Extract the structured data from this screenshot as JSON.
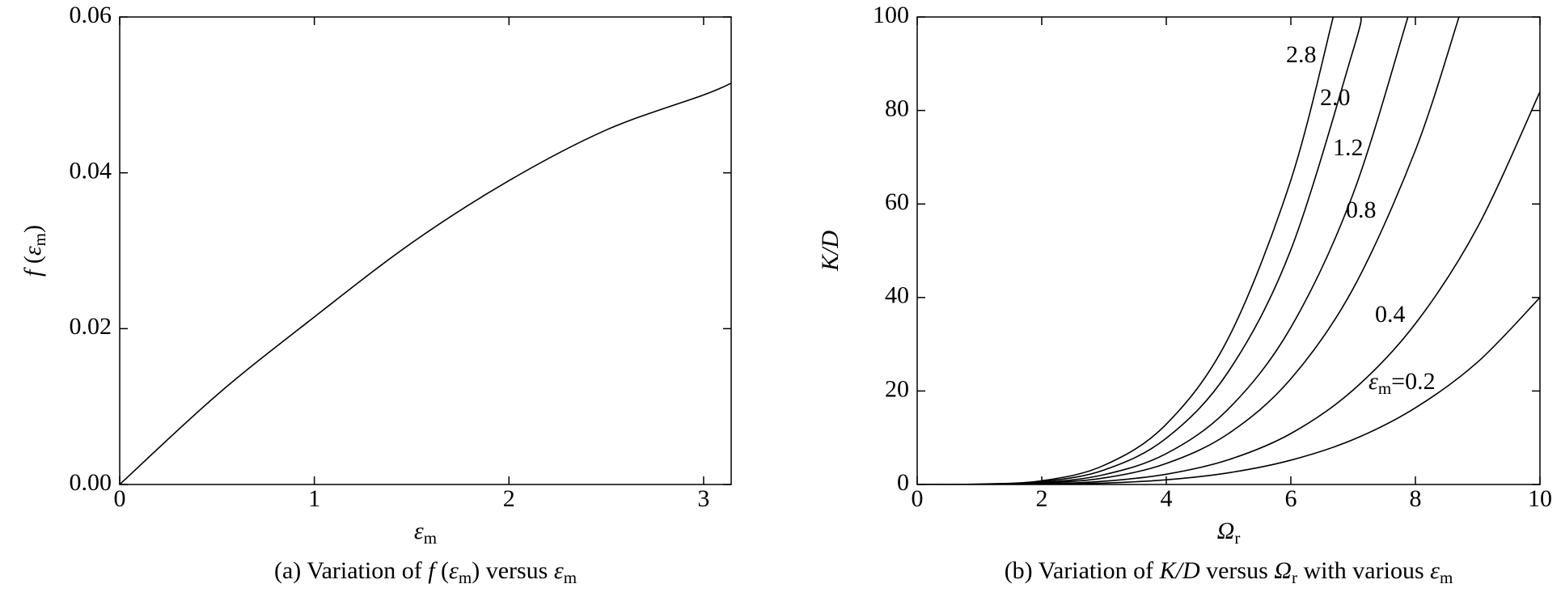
{
  "chart_data": [
    {
      "type": "line",
      "title": [
        {
          "text": "(a) Variation of "
        },
        {
          "text": "f",
          "italic": true
        },
        {
          "text": " ("
        },
        {
          "text": "ε",
          "italic": true
        },
        {
          "text": "m",
          "sub": true
        },
        {
          "text": ") versus "
        },
        {
          "text": "ε",
          "italic": true
        },
        {
          "text": "m",
          "sub": true
        }
      ],
      "xlabel": [
        {
          "text": "ε",
          "italic": true
        },
        {
          "text": "m",
          "sub": true
        }
      ],
      "ylabel": [
        {
          "text": "f",
          "italic": true
        },
        {
          "text": " ("
        },
        {
          "text": "ε",
          "italic": true
        },
        {
          "text": "m",
          "sub": true
        },
        {
          "text": ")"
        }
      ],
      "xlim": [
        0,
        3.14159
      ],
      "xticks": [
        0,
        1,
        2,
        3
      ],
      "ylim": [
        0,
        0.06
      ],
      "yticks": [
        {
          "value": 0,
          "label": "0.00"
        },
        0.02,
        0.04,
        0.06
      ],
      "series": [
        {
          "color": "#000000",
          "x": [
            0,
            0.5,
            1,
            1.5,
            2,
            2.5,
            3,
            3.14159
          ],
          "values": [
            0,
            0.0115,
            0.0215,
            0.031,
            0.039,
            0.0455,
            0.05,
            0.0515
          ]
        }
      ]
    },
    {
      "type": "line",
      "title": [
        {
          "text": "(b) Variation of "
        },
        {
          "text": "K/D",
          "italic": true
        },
        {
          "text": " versus "
        },
        {
          "text": "Ω",
          "italic": true
        },
        {
          "text": "r",
          "sub": true
        },
        {
          "text": " with various "
        },
        {
          "text": "ε",
          "italic": true
        },
        {
          "text": "m",
          "sub": true
        }
      ],
      "xlabel": [
        {
          "text": "Ω",
          "italic": true
        },
        {
          "text": "r",
          "sub": true
        }
      ],
      "ylabel": [
        {
          "text": "K/D",
          "italic": true
        }
      ],
      "xlim": [
        0,
        10
      ],
      "xticks": [
        0,
        2,
        4,
        6,
        8,
        10
      ],
      "ylim": [
        0,
        100
      ],
      "yticks": [
        0,
        20,
        40,
        60,
        80,
        100
      ],
      "series": [
        {
          "color": "#000000",
          "x": [
            0,
            1,
            2,
            3,
            4,
            5,
            6,
            7,
            8,
            9,
            10
          ],
          "values": [
            0,
            0,
            0.1,
            0.3,
            1,
            2.5,
            5.2,
            9.6,
            16.4,
            26.2,
            40
          ]
        },
        {
          "color": "#000000",
          "x": [
            0,
            1,
            2,
            3,
            4,
            5,
            6,
            7,
            8,
            9,
            10
          ],
          "values": [
            0,
            0,
            0.1,
            0.7,
            2.2,
            5.3,
            10.9,
            20.2,
            34.4,
            55.1,
            84
          ]
        },
        {
          "color": "#000000",
          "x": [
            0,
            1,
            2,
            3,
            4,
            5,
            6,
            7,
            8,
            8.7
          ],
          "values": [
            0,
            0,
            0.3,
            1.4,
            4.5,
            10.9,
            22.6,
            41.9,
            71.5,
            100
          ]
        },
        {
          "color": "#000000",
          "x": [
            0,
            1,
            2,
            3,
            4,
            5,
            6,
            7,
            7.88
          ],
          "values": [
            0,
            0,
            0.4,
            2.1,
            6.6,
            16.2,
            33.6,
            62.2,
            100
          ]
        },
        {
          "color": "#000000",
          "x": [
            0,
            1,
            2,
            3,
            4,
            5,
            6,
            7,
            7.13
          ],
          "values": [
            0,
            0,
            0.6,
            3.1,
            9.9,
            24.2,
            50.2,
            92.9,
            100
          ]
        },
        {
          "color": "#000000",
          "x": [
            0,
            1,
            2,
            3,
            4,
            5,
            6,
            6.68
          ],
          "values": [
            0,
            0.1,
            0.8,
            4.1,
            12.9,
            31.4,
            65.1,
            100
          ]
        }
      ],
      "annotations": [
        [
          {
            "text": "ε",
            "italic": true
          },
          {
            "text": "m",
            "sub": true
          },
          {
            "text": "=0.2"
          }
        ],
        "0.4",
        "0.8",
        "1.2",
        "2.0",
        "2.8"
      ]
    }
  ]
}
